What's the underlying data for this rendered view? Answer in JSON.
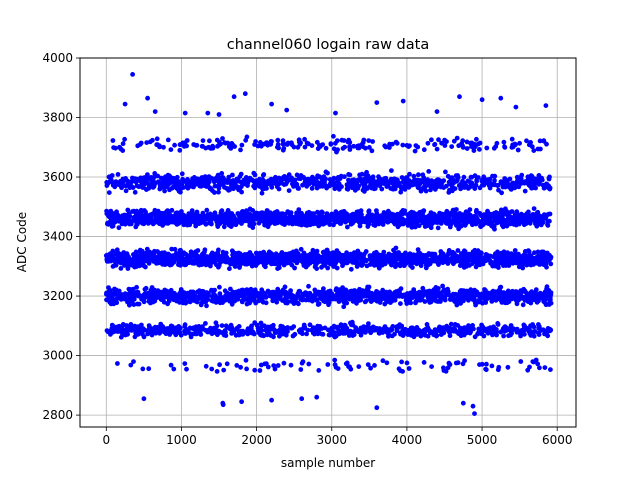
{
  "chart_data": {
    "type": "scatter",
    "title": "channel060 logain raw data",
    "xlabel": "sample number",
    "ylabel": "ADC Code",
    "xlim": [
      -350,
      6250
    ],
    "ylim": [
      2760,
      4000
    ],
    "xticks": [
      0,
      1000,
      2000,
      3000,
      4000,
      5000,
      6000
    ],
    "yticks": [
      2800,
      3000,
      3200,
      3400,
      3600,
      3800,
      4000
    ],
    "grid": true,
    "marker_color": "#0000ff",
    "n_samples": 5920,
    "level_bands": [
      {
        "center": 3710,
        "spread": 18,
        "density": 0.03
      },
      {
        "center": 3580,
        "spread": 25,
        "density": 0.14
      },
      {
        "center": 3460,
        "spread": 22,
        "density": 0.24
      },
      {
        "center": 3325,
        "spread": 22,
        "density": 0.25
      },
      {
        "center": 3200,
        "spread": 22,
        "density": 0.2
      },
      {
        "center": 3085,
        "spread": 18,
        "density": 0.11
      },
      {
        "center": 2965,
        "spread": 18,
        "density": 0.016
      }
    ],
    "outliers": [
      {
        "x": 350,
        "y": 3945
      },
      {
        "x": 250,
        "y": 3845
      },
      {
        "x": 550,
        "y": 3865
      },
      {
        "x": 650,
        "y": 3820
      },
      {
        "x": 1050,
        "y": 3815
      },
      {
        "x": 1350,
        "y": 3815
      },
      {
        "x": 1500,
        "y": 3810
      },
      {
        "x": 1700,
        "y": 3870
      },
      {
        "x": 1850,
        "y": 3880
      },
      {
        "x": 2200,
        "y": 3845
      },
      {
        "x": 2400,
        "y": 3825
      },
      {
        "x": 3050,
        "y": 3815
      },
      {
        "x": 3600,
        "y": 3850
      },
      {
        "x": 3950,
        "y": 3855
      },
      {
        "x": 4400,
        "y": 3820
      },
      {
        "x": 4700,
        "y": 3870
      },
      {
        "x": 5000,
        "y": 3860
      },
      {
        "x": 5250,
        "y": 3865
      },
      {
        "x": 5450,
        "y": 3835
      },
      {
        "x": 5850,
        "y": 3840
      },
      {
        "x": 500,
        "y": 2855
      },
      {
        "x": 1550,
        "y": 2840
      },
      {
        "x": 1555,
        "y": 2835
      },
      {
        "x": 1800,
        "y": 2845
      },
      {
        "x": 2200,
        "y": 2850
      },
      {
        "x": 2600,
        "y": 2855
      },
      {
        "x": 2800,
        "y": 2860
      },
      {
        "x": 3600,
        "y": 2825
      },
      {
        "x": 4750,
        "y": 2840
      },
      {
        "x": 4880,
        "y": 2830
      },
      {
        "x": 4900,
        "y": 2805
      }
    ]
  }
}
